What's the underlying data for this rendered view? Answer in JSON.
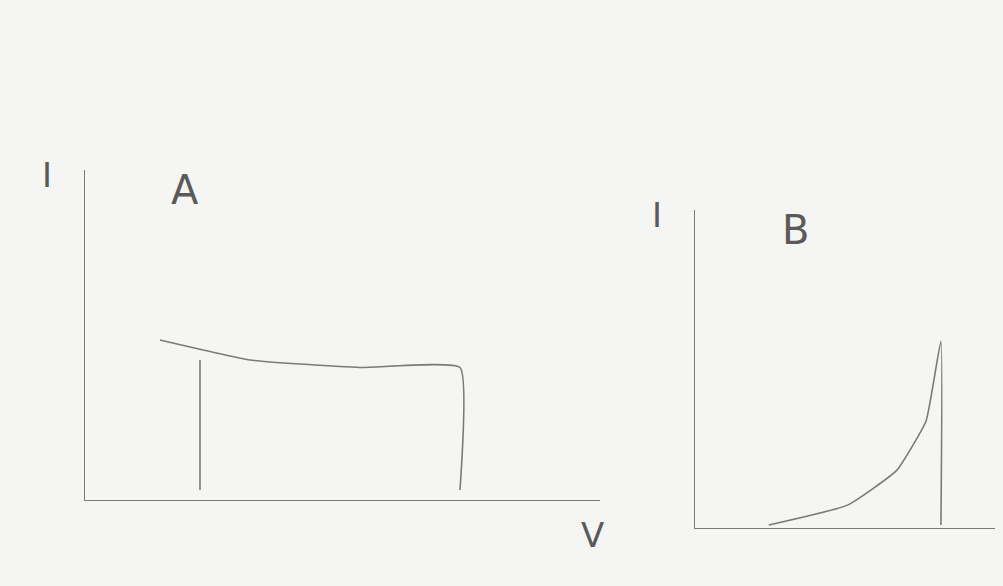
{
  "chart_data": [
    {
      "type": "line",
      "title": "A",
      "x_label": "V",
      "y_label": "I",
      "x": [
        2.3,
        2.3,
        2.3,
        1.5,
        3.3,
        5.5,
        7.5,
        7.5
      ],
      "values": [
        0.2,
        2.8,
        null,
        3.2,
        2.8,
        2.65,
        2.65,
        0.2
      ],
      "xlim": [
        0,
        10.3
      ],
      "ylim": [
        0,
        6.6
      ],
      "xticks": [],
      "yticks": [],
      "tick_labels": false,
      "grid": false,
      "color": "#7a7a7a"
    },
    {
      "type": "line",
      "title": "B",
      "y_label": "I",
      "x": [
        1.5,
        3.1,
        4.1,
        4.7,
        5.0,
        5.0
      ],
      "values": [
        0.06,
        0.46,
        1.16,
        2.16,
        3.76,
        0.06
      ],
      "xlim": [
        0,
        6.1
      ],
      "ylim": [
        0,
        6.4
      ],
      "xticks": [],
      "yticks": [],
      "tick_labels": false,
      "grid": false,
      "color": "#7a7a7a"
    }
  ]
}
